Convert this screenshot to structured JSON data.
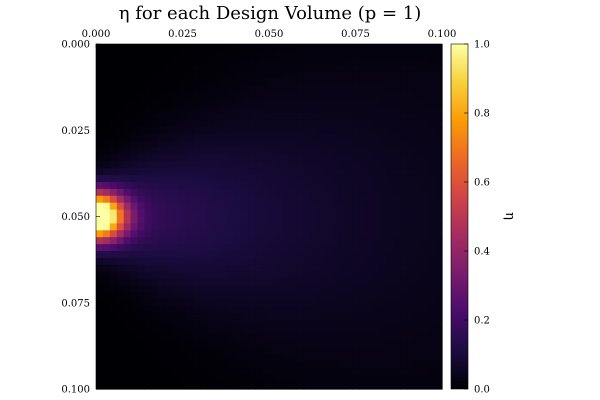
{
  "chart_data": {
    "type": "heatmap",
    "title": "η for each Design Volume (p = 1)",
    "xlabel": "",
    "ylabel": "",
    "x_range": [
      0.0,
      0.1
    ],
    "y_range": [
      0.0,
      0.1
    ],
    "y_axis_inverted": true,
    "x_axis_position": "top",
    "x_ticks": [
      "0.000",
      "0.025",
      "0.050",
      "0.075",
      "0.100"
    ],
    "y_ticks": [
      "0.000",
      "0.025",
      "0.050",
      "0.075",
      "0.100"
    ],
    "grid_resolution": [
      50,
      50
    ],
    "field_description_values": {
      "hotspot_center": [
        0.0,
        0.05
      ],
      "hotspot_max": 1.0,
      "background_min": 0.0
    },
    "colorbar": {
      "label": "η",
      "range": [
        0.0,
        1.0
      ],
      "ticks": [
        "0.0",
        "0.2",
        "0.4",
        "0.6",
        "0.8",
        "1.0"
      ],
      "colormap": "inferno"
    },
    "colors": {
      "inferno": [
        "#000004",
        "#1b0c41",
        "#4a0c6b",
        "#781c6d",
        "#a52c60",
        "#cf4446",
        "#ed6925",
        "#fb9b06",
        "#f7d13d",
        "#fcffa4"
      ]
    }
  }
}
